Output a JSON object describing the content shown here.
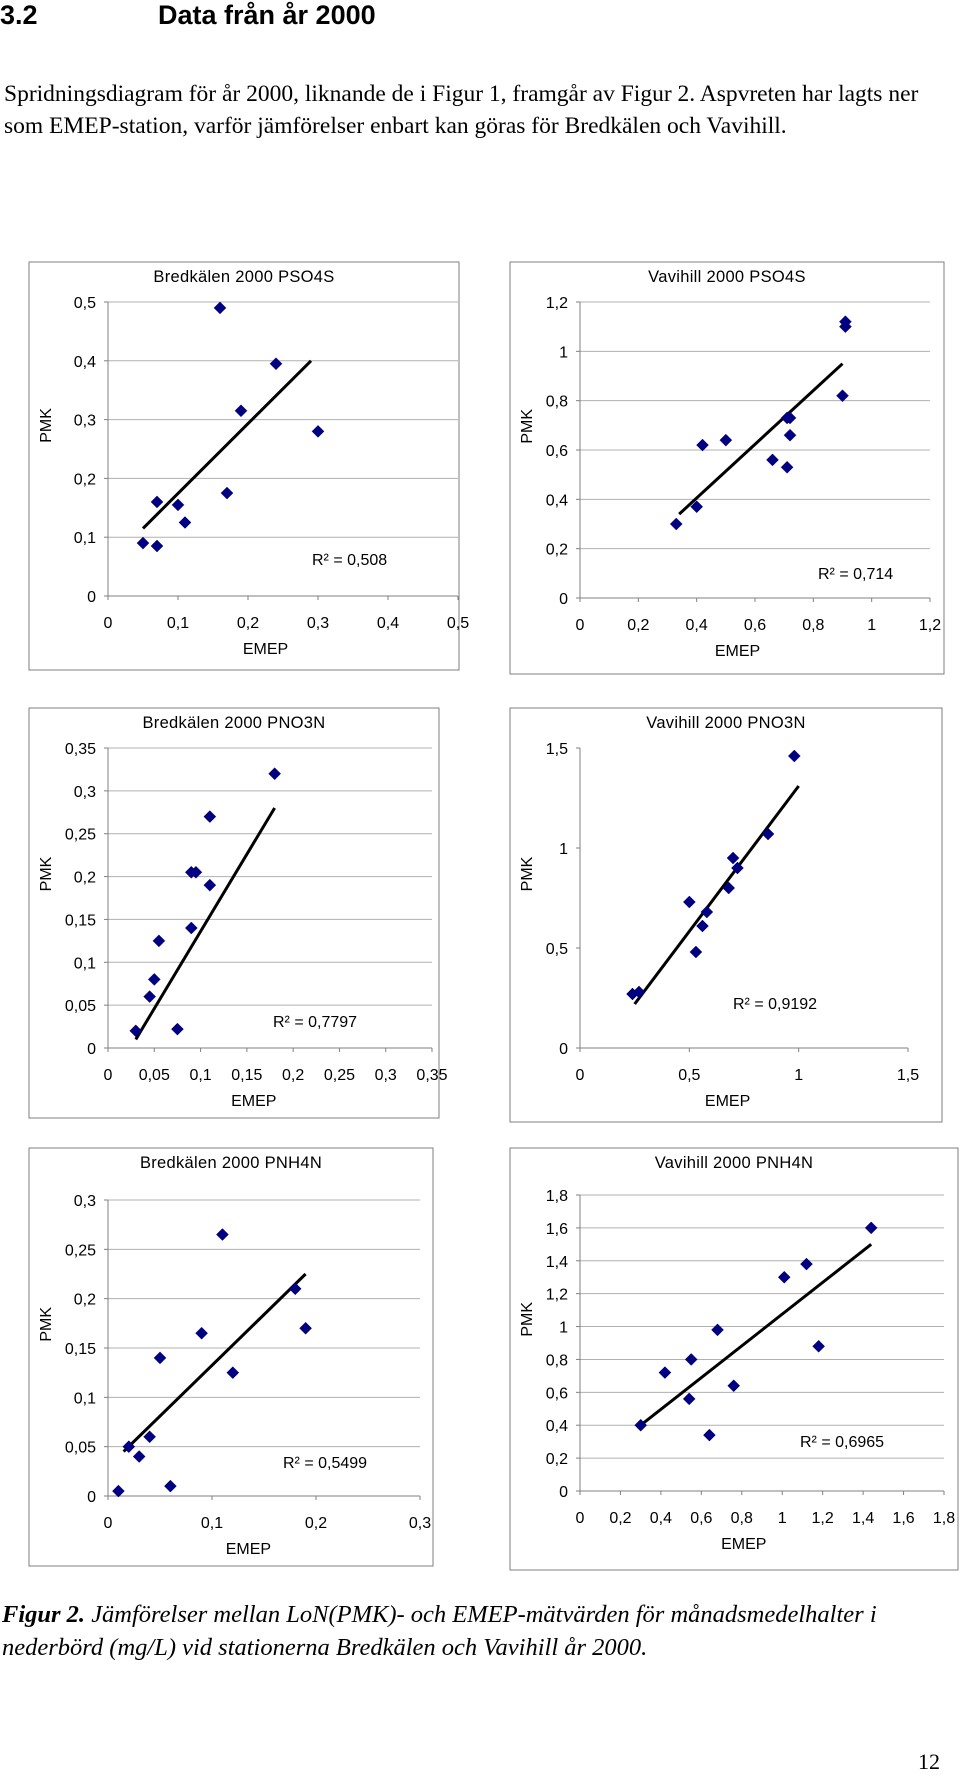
{
  "heading": {
    "number": "3.2",
    "title": "Data från år 2000"
  },
  "intro": "Spridningsdiagram för år 2000, liknande de i Figur 1, framgår av Figur 2. Aspvreten har lagts ner som EMEP-station, varför jämförelser enbart kan göras för Bredkälen och Vavihill.",
  "caption": {
    "label": "Figur 2.",
    "text": " Jämförelser mellan LoN(PMK)- och EMEP-mätvärden för månadsmedelhalter i nederbörd (mg/L) vid stationerna Bredkälen och Vavihill år 2000."
  },
  "page_number": "12",
  "colors": {
    "marker": "#000080",
    "trendline": "#000000",
    "grid": "#b0b0b0"
  },
  "chart_data": [
    {
      "type": "scatter",
      "title": "Bredkälen 2000 PSO4S",
      "xlabel": "EMEP",
      "ylabel": "PMK",
      "xlim": [
        0,
        0.5
      ],
      "ylim": [
        0,
        0.5
      ],
      "grid": true,
      "xticks": [
        "0",
        "0,1",
        "0,2",
        "0,3",
        "0,4",
        "0,5"
      ],
      "yticks": [
        "0",
        "0,1",
        "0,2",
        "0,3",
        "0,4",
        "0,5"
      ],
      "x": [
        0.05,
        0.07,
        0.07,
        0.1,
        0.11,
        0.16,
        0.17,
        0.19,
        0.24,
        0.3
      ],
      "y": [
        0.09,
        0.085,
        0.16,
        0.155,
        0.125,
        0.49,
        0.175,
        0.315,
        0.395,
        0.28
      ],
      "trend": [
        [
          0.05,
          0.115
        ],
        [
          0.29,
          0.4
        ]
      ],
      "r2": "R² = 0,508"
    },
    {
      "type": "scatter",
      "title": "Vavihill 2000 PSO4S",
      "xlabel": "EMEP",
      "ylabel": "PMK",
      "xlim": [
        0,
        1.2
      ],
      "ylim": [
        0,
        1.2
      ],
      "grid": true,
      "xticks": [
        "0",
        "0,2",
        "0,4",
        "0,6",
        "0,8",
        "1",
        "1,2"
      ],
      "yticks": [
        "0",
        "0,2",
        "0,4",
        "0,6",
        "0,8",
        "1",
        "1,2"
      ],
      "x": [
        0.33,
        0.4,
        0.42,
        0.5,
        0.66,
        0.71,
        0.72,
        0.71,
        0.72,
        0.9,
        0.91,
        0.91
      ],
      "y": [
        0.3,
        0.37,
        0.62,
        0.64,
        0.56,
        0.53,
        0.66,
        0.73,
        0.73,
        0.82,
        1.1,
        1.12
      ],
      "trend": [
        [
          0.34,
          0.34
        ],
        [
          0.9,
          0.95
        ]
      ],
      "r2": "R² = 0,714"
    },
    {
      "type": "scatter",
      "title": "Bredkälen 2000 PNO3N",
      "xlabel": "EMEP",
      "ylabel": "PMK",
      "xlim": [
        0,
        0.35
      ],
      "ylim": [
        0,
        0.35
      ],
      "grid": true,
      "xticks": [
        "0",
        "0,05",
        "0,1",
        "0,15",
        "0,2",
        "0,25",
        "0,3",
        "0,35"
      ],
      "yticks": [
        "0",
        "0,05",
        "0,1",
        "0,15",
        "0,2",
        "0,25",
        "0,3",
        "0,35"
      ],
      "x": [
        0.03,
        0.045,
        0.05,
        0.055,
        0.075,
        0.09,
        0.09,
        0.095,
        0.11,
        0.11,
        0.18
      ],
      "y": [
        0.02,
        0.06,
        0.08,
        0.125,
        0.022,
        0.205,
        0.14,
        0.205,
        0.27,
        0.19,
        0.32
      ],
      "trend": [
        [
          0.03,
          0.01
        ],
        [
          0.18,
          0.28
        ]
      ],
      "r2": "R² = 0,7797"
    },
    {
      "type": "scatter",
      "title": "Vavihill 2000 PNO3N",
      "xlabel": "EMEP",
      "ylabel": "PMK",
      "xlim": [
        0,
        1.5
      ],
      "ylim": [
        0,
        1.5
      ],
      "grid": false,
      "xticks": [
        "0",
        "0,5",
        "1",
        "1,5"
      ],
      "yticks": [
        "0",
        "0,5",
        "1",
        "1,5"
      ],
      "x": [
        0.24,
        0.27,
        0.5,
        0.53,
        0.56,
        0.58,
        0.68,
        0.7,
        0.72,
        0.86,
        0.98
      ],
      "y": [
        0.27,
        0.28,
        0.73,
        0.48,
        0.61,
        0.68,
        0.8,
        0.95,
        0.9,
        1.07,
        1.46
      ],
      "trend": [
        [
          0.25,
          0.22
        ],
        [
          1.0,
          1.31
        ]
      ],
      "r2": "R² = 0,9192"
    },
    {
      "type": "scatter",
      "title": "Bredkälen 2000 PNH4N",
      "xlabel": "EMEP",
      "ylabel": "PMK",
      "xlim": [
        0,
        0.3
      ],
      "ylim": [
        0,
        0.3
      ],
      "grid": true,
      "xticks": [
        "0",
        "0,1",
        "0,2",
        "0,3"
      ],
      "yticks": [
        "0",
        "0,05",
        "0,1",
        "0,15",
        "0,2",
        "0,25",
        "0,3"
      ],
      "x": [
        0.01,
        0.02,
        0.03,
        0.04,
        0.05,
        0.06,
        0.09,
        0.11,
        0.12,
        0.18,
        0.19
      ],
      "y": [
        0.005,
        0.05,
        0.04,
        0.06,
        0.14,
        0.01,
        0.165,
        0.265,
        0.125,
        0.21,
        0.17
      ],
      "trend": [
        [
          0.015,
          0.045
        ],
        [
          0.19,
          0.225
        ]
      ],
      "r2": "R² = 0,5499"
    },
    {
      "type": "scatter",
      "title": "Vavihill 2000 PNH4N",
      "xlabel": "EMEP",
      "ylabel": "PMK",
      "xlim": [
        0,
        1.8
      ],
      "ylim": [
        0,
        1.8
      ],
      "grid": true,
      "xticks": [
        "0",
        "0,2",
        "0,4",
        "0,6",
        "0,8",
        "1",
        "1,2",
        "1,4",
        "1,6",
        "1,8"
      ],
      "yticks": [
        "0",
        "0,2",
        "0,4",
        "0,6",
        "0,8",
        "1",
        "1,2",
        "1,4",
        "1,6",
        "1,8"
      ],
      "x": [
        0.3,
        0.42,
        0.54,
        0.55,
        0.64,
        0.68,
        0.76,
        1.01,
        1.12,
        1.18,
        1.44
      ],
      "y": [
        0.4,
        0.72,
        0.56,
        0.8,
        0.34,
        0.98,
        0.64,
        1.3,
        1.38,
        0.88,
        1.6
      ],
      "trend": [
        [
          0.3,
          0.4
        ],
        [
          1.44,
          1.5
        ]
      ],
      "r2": "R² = 0,6965"
    }
  ]
}
